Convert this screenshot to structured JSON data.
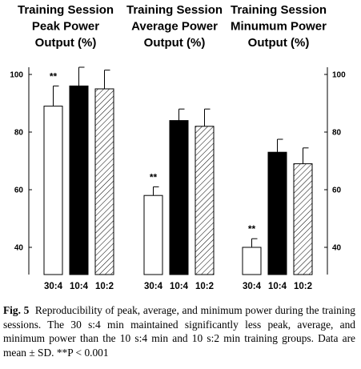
{
  "chart_data": {
    "type": "bar",
    "group_titles": [
      [
        "Training Session",
        "Peak Power",
        "Output (%)"
      ],
      [
        "Training Session",
        "Average Power",
        "Output (%)"
      ],
      [
        "Training Session",
        "Minumum Power",
        "Output (%)"
      ]
    ],
    "categories": [
      "30:4",
      "10:4",
      "10:2"
    ],
    "groups": [
      {
        "name": "Peak",
        "values": [
          89,
          96,
          95
        ],
        "sd": [
          7,
          6.5,
          6.5
        ],
        "sig": [
          "**",
          "",
          ""
        ]
      },
      {
        "name": "Average",
        "values": [
          58,
          84,
          82
        ],
        "sd": [
          3,
          4,
          6
        ],
        "sig": [
          "**",
          "",
          ""
        ]
      },
      {
        "name": "Minimum",
        "values": [
          40,
          73,
          69
        ],
        "sd": [
          3,
          4.5,
          5.5
        ],
        "sig": [
          "**",
          "",
          ""
        ]
      }
    ],
    "series_fills": {
      "30:4": "#ffffff",
      "10:4": "#000000",
      "10:2": "hatched"
    },
    "yticks": [
      40,
      60,
      80,
      100
    ],
    "ylim": [
      30,
      104
    ],
    "axes": "left-and-right",
    "grid": false,
    "xlabel": "",
    "ylabel": ""
  },
  "caption": {
    "label": "Fig. 5",
    "text": "Reproducibility of peak, average, and minimum power during the training sessions. The 30 s:4 min maintained significantly less peak, average, and minimum power than the 10 s:4 min and 10 s:2 min training groups. Data are mean ± SD. **P < 0.001"
  }
}
